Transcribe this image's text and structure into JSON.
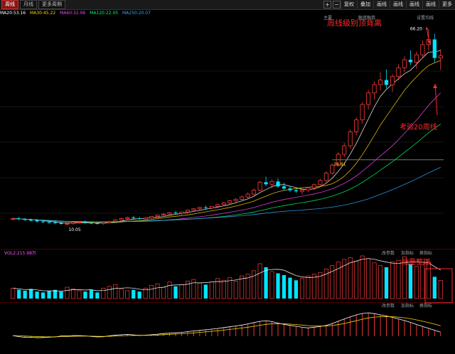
{
  "tabs": [
    "周线",
    "月线",
    "更多周期"
  ],
  "toolbar": [
    "复权",
    "叠加",
    "画线",
    "画线",
    "画线",
    "画线",
    "更多"
  ],
  "ma_legend": [
    {
      "label": "MA20:53.16",
      "color": "#ffffff"
    },
    {
      "label": "MA30:45.22",
      "color": "#ffd400"
    },
    {
      "label": "MA60:32.06",
      "color": "#ff44ff"
    },
    {
      "label": "MA120:22.05",
      "color": "#00ff66"
    },
    {
      "label": "MA250:20.07",
      "color": "#33aaff"
    }
  ],
  "overlay_labels": [
    "主要",
    "融资融券",
    "设置均线"
  ],
  "annotations": {
    "top_divergence": "周线级别顶背离",
    "test_ma20": "考验20周线",
    "volume_consolidation": "缩量整理"
  },
  "price_labels": {
    "high": "66.20",
    "low": "10.05",
    "guide": "28.81"
  },
  "volume_panel": {
    "title": "VOL2:215.98万",
    "controls": [
      "改参数",
      "加指标",
      "换指标"
    ]
  },
  "macd_panel": {
    "controls": [
      "改参数",
      "加指标",
      "换指标"
    ]
  },
  "chart_data": {
    "type": "candlestick",
    "title": "",
    "xlabel": "",
    "ylabel": "",
    "ylim": [
      5,
      70
    ],
    "candles": [
      [
        11.8,
        12.4,
        11.4,
        12.0
      ],
      [
        12.0,
        12.5,
        11.6,
        11.9
      ],
      [
        11.9,
        12.2,
        11.4,
        11.6
      ],
      [
        11.6,
        12.0,
        11.2,
        11.5
      ],
      [
        11.5,
        11.9,
        10.9,
        11.2
      ],
      [
        11.2,
        11.7,
        10.7,
        11.0
      ],
      [
        11.0,
        11.5,
        10.5,
        10.9
      ],
      [
        10.9,
        11.4,
        10.4,
        10.8
      ],
      [
        10.8,
        11.2,
        10.2,
        10.5
      ],
      [
        10.5,
        11.0,
        10.05,
        10.6
      ],
      [
        10.6,
        11.1,
        10.3,
        10.9
      ],
      [
        10.9,
        11.3,
        10.5,
        11.0
      ],
      [
        11.0,
        11.5,
        10.6,
        10.8
      ],
      [
        10.8,
        11.2,
        10.4,
        10.7
      ],
      [
        10.7,
        11.1,
        10.3,
        10.6
      ],
      [
        10.6,
        11.0,
        10.2,
        10.9
      ],
      [
        10.9,
        11.4,
        10.6,
        11.2
      ],
      [
        11.2,
        11.8,
        10.9,
        11.6
      ],
      [
        11.6,
        12.2,
        11.2,
        12.0
      ],
      [
        12.0,
        12.6,
        11.6,
        12.3
      ],
      [
        12.3,
        12.8,
        11.9,
        12.1
      ],
      [
        12.1,
        12.5,
        11.7,
        11.9
      ],
      [
        11.9,
        12.3,
        11.5,
        12.2
      ],
      [
        12.2,
        12.7,
        11.9,
        12.6
      ],
      [
        12.6,
        13.2,
        12.2,
        13.0
      ],
      [
        13.0,
        13.6,
        12.6,
        13.3
      ],
      [
        13.3,
        13.9,
        12.9,
        13.7
      ],
      [
        13.7,
        14.2,
        13.2,
        13.5
      ],
      [
        13.5,
        14.0,
        13.0,
        13.9
      ],
      [
        13.9,
        14.6,
        13.5,
        14.4
      ],
      [
        14.4,
        15.0,
        14.0,
        14.8
      ],
      [
        14.8,
        15.4,
        14.4,
        15.2
      ],
      [
        15.2,
        15.8,
        14.7,
        15.0
      ],
      [
        15.0,
        15.6,
        14.6,
        15.5
      ],
      [
        15.5,
        16.2,
        15.1,
        16.0
      ],
      [
        16.0,
        16.8,
        15.6,
        16.5
      ],
      [
        16.5,
        17.4,
        16.0,
        17.1
      ],
      [
        17.1,
        17.9,
        16.6,
        17.5
      ],
      [
        17.5,
        18.6,
        17.0,
        18.2
      ],
      [
        18.2,
        19.5,
        17.8,
        19.0
      ],
      [
        19.0,
        20.6,
        18.5,
        20.1
      ],
      [
        20.1,
        22.8,
        19.8,
        22.4
      ],
      [
        22.4,
        24.0,
        21.2,
        21.8
      ],
      [
        21.8,
        23.2,
        20.6,
        22.6
      ],
      [
        22.6,
        23.5,
        20.8,
        21.2
      ],
      [
        21.2,
        22.3,
        20.0,
        20.6
      ],
      [
        20.6,
        21.4,
        19.6,
        20.1
      ],
      [
        20.1,
        21.0,
        19.3,
        19.8
      ],
      [
        19.8,
        20.6,
        18.9,
        20.2
      ],
      [
        20.2,
        21.1,
        19.6,
        20.8
      ],
      [
        20.8,
        22.0,
        20.2,
        21.7
      ],
      [
        21.7,
        23.4,
        21.2,
        22.9
      ],
      [
        22.9,
        25.5,
        22.4,
        25.0
      ],
      [
        25.0,
        27.8,
        24.6,
        27.3
      ],
      [
        27.3,
        31.0,
        26.8,
        30.4
      ],
      [
        30.4,
        33.6,
        29.6,
        32.8
      ],
      [
        32.8,
        37.5,
        32.0,
        36.8
      ],
      [
        36.8,
        41.0,
        35.8,
        40.2
      ],
      [
        40.2,
        45.2,
        39.2,
        44.6
      ],
      [
        44.6,
        48.8,
        43.1,
        47.9
      ],
      [
        47.9,
        51.2,
        46.0,
        50.3
      ],
      [
        50.3,
        53.8,
        48.6,
        51.6
      ],
      [
        51.6,
        54.7,
        49.2,
        50.2
      ],
      [
        50.2,
        53.3,
        48.2,
        52.6
      ],
      [
        52.6,
        56.1,
        51.6,
        55.1
      ],
      [
        55.1,
        58.4,
        53.8,
        57.4
      ],
      [
        57.4,
        60.1,
        55.9,
        56.7
      ],
      [
        56.7,
        59.7,
        54.8,
        58.8
      ],
      [
        58.8,
        62.9,
        57.8,
        61.7
      ],
      [
        61.7,
        66.2,
        60.1,
        63.2
      ],
      [
        63.2,
        64.8,
        56.6,
        57.9
      ],
      [
        57.9,
        60.4,
        54.5,
        58.5
      ]
    ],
    "volume": [
      1.2,
      1.0,
      0.9,
      1.1,
      0.8,
      0.7,
      0.9,
      1.0,
      0.8,
      1.3,
      1.1,
      0.9,
      0.8,
      1.0,
      0.7,
      1.2,
      1.4,
      1.6,
      1.1,
      0.9,
      1.0,
      0.8,
      1.2,
      1.5,
      1.7,
      1.3,
      1.9,
      1.4,
      1.6,
      2.0,
      2.2,
      1.8,
      1.6,
      1.9,
      2.3,
      2.1,
      2.4,
      2.0,
      2.6,
      2.8,
      3.2,
      4.0,
      3.6,
      3.1,
      2.9,
      2.7,
      2.4,
      2.1,
      2.3,
      2.6,
      2.8,
      3.0,
      3.4,
      3.8,
      4.2,
      4.5,
      4.7,
      4.3,
      4.9,
      4.6,
      4.1,
      3.8,
      3.6,
      4.2,
      4.4,
      4.8,
      4.0,
      3.7,
      3.9,
      4.2,
      2.5,
      2.1
    ],
    "macd_hist": [
      0.05,
      -0.04,
      -0.08,
      -0.06,
      -0.1,
      -0.08,
      -0.06,
      -0.04,
      0.03,
      0.02,
      0.05,
      0.04,
      0.02,
      -0.02,
      -0.05,
      -0.03,
      0.04,
      0.08,
      0.1,
      0.12,
      0.08,
      0.05,
      0.07,
      0.1,
      0.14,
      0.18,
      0.2,
      0.22,
      0.25,
      0.3,
      0.34,
      0.38,
      0.42,
      0.46,
      0.5,
      0.56,
      0.61,
      0.66,
      0.72,
      0.8,
      0.88,
      0.96,
      1.0,
      0.92,
      0.82,
      0.74,
      0.68,
      0.62,
      0.56,
      0.52,
      0.58,
      0.62,
      0.7,
      0.82,
      0.98,
      1.12,
      1.26,
      1.38,
      1.46,
      1.5,
      1.42,
      1.35,
      1.28,
      1.18,
      1.08,
      0.98,
      0.86,
      0.72,
      0.6,
      0.48,
      0.36,
      0.24
    ]
  }
}
